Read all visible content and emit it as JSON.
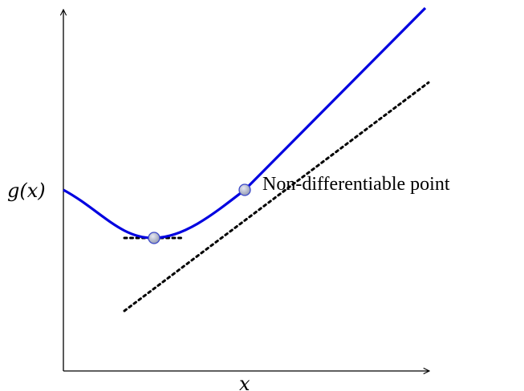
{
  "axes": {
    "y_label": "g(x)",
    "x_label": "x"
  },
  "annotation": {
    "text": "Non-differentiable point"
  },
  "colors": {
    "curve": "#0000e0",
    "tangent": "#000000",
    "marker_fill": "#9aa4c4",
    "marker_stroke": "#3a47c8"
  }
}
